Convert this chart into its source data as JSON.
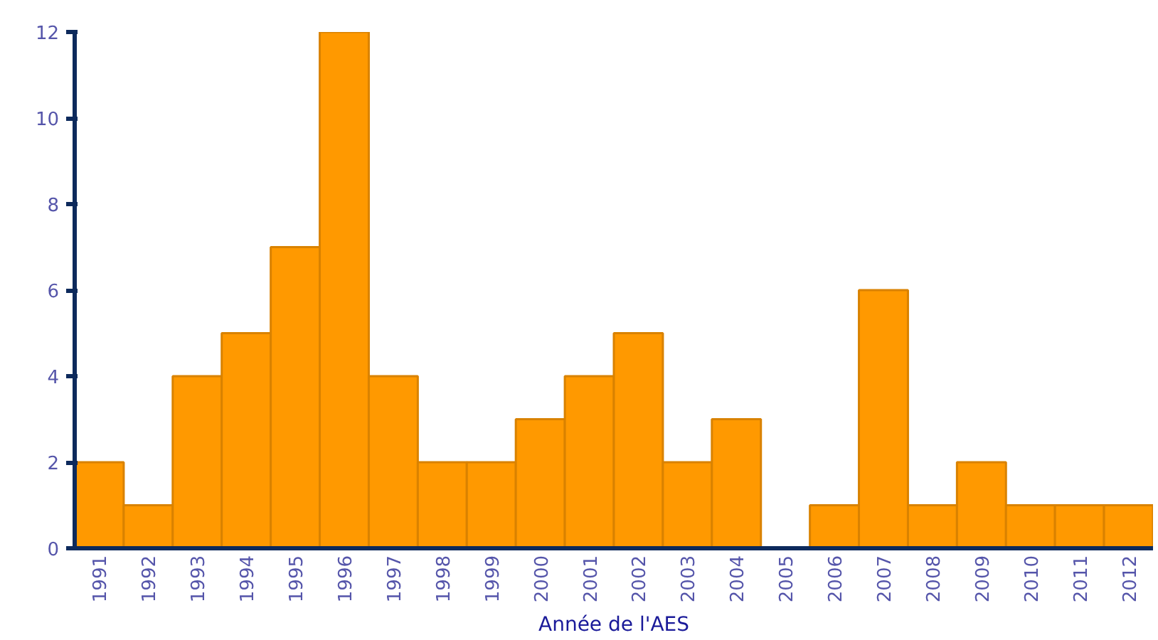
{
  "chart_data": {
    "type": "bar",
    "xlabel": "Année de l'AES",
    "categories": [
      "1991",
      "1992",
      "1993",
      "1994",
      "1995",
      "1996",
      "1997",
      "1998",
      "1999",
      "2000",
      "2001",
      "2002",
      "2003",
      "2004",
      "2005",
      "2006",
      "2007",
      "2008",
      "2009",
      "2010",
      "2011",
      "2012"
    ],
    "values": [
      2,
      1,
      4,
      5,
      7,
      12,
      4,
      2,
      2,
      3,
      4,
      5,
      2,
      3,
      0,
      1,
      6,
      1,
      2,
      1,
      1,
      1
    ],
    "color": "#ff9900",
    "ylim": [
      0,
      12
    ],
    "yticks": [
      0,
      2,
      4,
      6,
      8,
      10,
      12
    ],
    "grid": false
  }
}
